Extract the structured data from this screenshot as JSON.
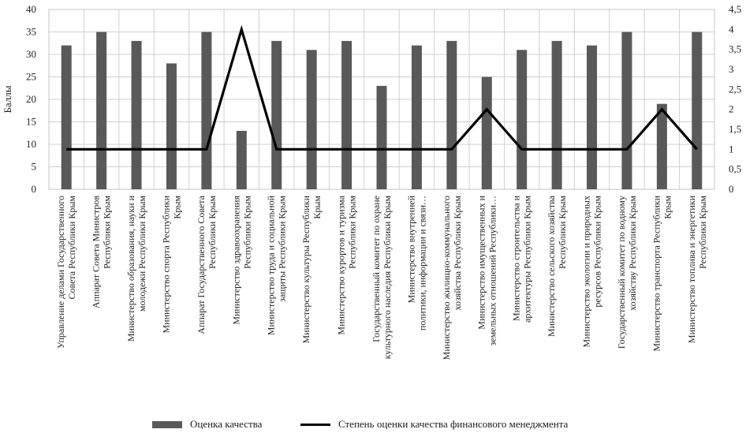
{
  "chart_data": {
    "type": "bar",
    "ylabel": "Баллы",
    "ylim": [
      0,
      40
    ],
    "y2lim": [
      0,
      4.5
    ],
    "yticks": [
      "0",
      "5",
      "10",
      "15",
      "20",
      "25",
      "30",
      "35",
      "40"
    ],
    "y2ticks": [
      "0",
      "0,5",
      "1",
      "1,5",
      "2",
      "2,5",
      "3",
      "3,5",
      "4",
      "4,5"
    ],
    "grid": true,
    "legend_position": "bottom",
    "categories": [
      [
        "Управление делами Государственного",
        "Совета Республики Крым"
      ],
      [
        "Аппарат Совета Министров",
        "Республики Крым"
      ],
      [
        "Министерство образования, науки и",
        "молодежи Республики Крым"
      ],
      [
        "Министерство спорта Республики",
        "Крым"
      ],
      [
        "Аппарат Государственного Совета",
        "Республики Крым"
      ],
      [
        "Министерство здравоохранения",
        "Республики Крым"
      ],
      [
        "Министерство труда и социальной",
        "защиты Республики Крым"
      ],
      [
        "Министерство культуры Республики",
        "Крым"
      ],
      [
        "Министерство курортов и туризма",
        "Республики Крым"
      ],
      [
        "Государственный комитет по охране",
        "культурного наследия Республики Крым"
      ],
      [
        "Министерство внутренней",
        "политики, информации и связи…"
      ],
      [
        "Министерство жилищно-коммунального",
        "хозяйства Республики Крым"
      ],
      [
        "Министерство имущественных и",
        "земельных отношений Республики…"
      ],
      [
        "Министерство строительства и",
        "архитектуры Республики Крым"
      ],
      [
        "Министерство сельского хозяйства",
        "Республики Крым"
      ],
      [
        "Министерство экологии и природных",
        "ресурсов Республики Крым"
      ],
      [
        "Государственный комитет по водному",
        "хозяйству Республики Крым"
      ],
      [
        "Министерство транспорта Республики",
        "Крым"
      ],
      [
        "Министерство топлива и энергетики",
        "Республики Крым"
      ]
    ],
    "series": [
      {
        "name": "Оценка качества",
        "type": "bar",
        "axis": "left",
        "color": "#595959",
        "values": [
          32,
          35,
          33,
          28,
          35,
          13,
          33,
          31,
          33,
          23,
          32,
          33,
          25,
          31,
          33,
          32,
          35,
          19,
          35
        ]
      },
      {
        "name": "Степень оценки качества финансового менеджмента",
        "type": "line",
        "axis": "right",
        "color": "#000000",
        "values": [
          1,
          1,
          1,
          1,
          1,
          4,
          1,
          1,
          1,
          1,
          1,
          1,
          2,
          1,
          1,
          1,
          1,
          2,
          1
        ]
      }
    ]
  }
}
